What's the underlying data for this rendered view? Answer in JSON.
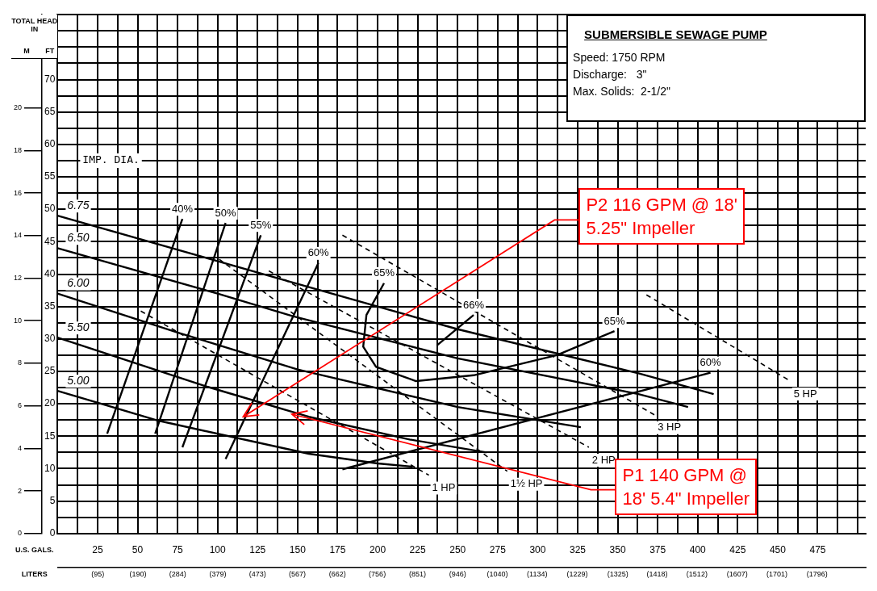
{
  "chart_data": {
    "type": "line",
    "title": "SUBMERSIBLE SEWAGE PUMP",
    "ylabel": "FT",
    "y2label": "M",
    "xlabel": "U.S. GALS.",
    "x2label": "LITERS",
    "legend_title": "IMP. DIA.",
    "legend": "left",
    "annotations": [
      "TOTAL HEAD IN",
      "Speed: 1750 RPM",
      "Discharge:   3\"",
      "Max. Solids:  2-1/2\"",
      {
        "text": "P2 116 GPM @ 18'\n5.25\" Impeller",
        "x": 116,
        "y": 18
      },
      "P1 140 GPM @\n18' 5.4\" Impeller"
    ],
    "xlim": [
      0,
      505
    ],
    "xticks": [
      {
        "value": 0,
        "label": null
      },
      {
        "value": 12.5,
        "label": null
      },
      25,
      {
        "value": 37.5,
        "label": null
      },
      50,
      {
        "value": 62.5,
        "label": null
      },
      75,
      {
        "value": 87.5,
        "label": null
      },
      100,
      {
        "value": 112.5,
        "label": null
      },
      125,
      {
        "value": 137.5,
        "label": null
      },
      150,
      {
        "value": 162.5,
        "label": null
      },
      175,
      {
        "value": 187.5,
        "label": null
      },
      200,
      {
        "value": 212.5,
        "label": null
      },
      225,
      {
        "value": 237.5,
        "label": null
      },
      250,
      {
        "value": 262.5,
        "label": null
      },
      275,
      {
        "value": 287.5,
        "label": null
      },
      300,
      {
        "value": 312.5,
        "label": null
      },
      325,
      {
        "value": 337.5,
        "label": null
      },
      350,
      {
        "value": 362.5,
        "label": null
      },
      375,
      {
        "value": 387.5,
        "label": null
      },
      400,
      {
        "value": 412.5,
        "label": null
      },
      425,
      {
        "value": 437.5,
        "label": null
      },
      450,
      {
        "value": 462.5,
        "label": null
      },
      475,
      {
        "value": 487.5,
        "label": null
      },
      {
        "value": 500,
        "label": null
      }
    ],
    "x2lim": [
      0,
      1911
    ],
    "x2ticks": [
      {
        "value": 95,
        "label": "(95)"
      },
      {
        "value": 190,
        "label": "(190)"
      },
      {
        "value": 284,
        "label": "(284)"
      },
      {
        "value": 379,
        "label": "(379)"
      },
      {
        "value": 473,
        "label": "(473)"
      },
      {
        "value": 567,
        "label": "(567)"
      },
      {
        "value": 662,
        "label": "(662)"
      },
      {
        "value": 756,
        "label": "(756)"
      },
      {
        "value": 851,
        "label": "(851)"
      },
      {
        "value": 946,
        "label": "(946)"
      },
      {
        "value": 1040,
        "label": "(1040)"
      },
      {
        "value": 1134,
        "label": "(1134)"
      },
      {
        "value": 1229,
        "label": "(1229)"
      },
      {
        "value": 1325,
        "label": "(1325)"
      },
      {
        "value": 1418,
        "label": "(1418)"
      },
      {
        "value": 1512,
        "label": "(1512)"
      },
      {
        "value": 1607,
        "label": "(1607)"
      },
      {
        "value": 1701,
        "label": "(1701)"
      },
      {
        "value": 1796,
        "label": "(1796)"
      }
    ],
    "ylim": [
      0,
      80
    ],
    "yticks": [
      0,
      {
        "value": 2.5,
        "label": null
      },
      5,
      {
        "value": 7.5,
        "label": null
      },
      10,
      {
        "value": 12.5,
        "label": null
      },
      15,
      {
        "value": 17.5,
        "label": null
      },
      20,
      {
        "value": 22.5,
        "label": null
      },
      25,
      {
        "value": 27.5,
        "label": null
      },
      30,
      {
        "value": 32.5,
        "label": null
      },
      35,
      {
        "value": 37.5,
        "label": null
      },
      40,
      {
        "value": 42.5,
        "label": null
      },
      45,
      {
        "value": 47.5,
        "label": null
      },
      50,
      {
        "value": 52.5,
        "label": null
      },
      55,
      {
        "value": 57.5,
        "label": null
      },
      60,
      {
        "value": 62.5,
        "label": null
      },
      65,
      {
        "value": 67.5,
        "label": null
      },
      70,
      {
        "value": 72.5,
        "label": null
      },
      {
        "value": 75,
        "label": null
      },
      {
        "value": 77.5,
        "label": null
      },
      {
        "value": 80,
        "label": null
      }
    ],
    "y2lim": [
      0,
      24.38
    ],
    "y2ticks": [
      0,
      2,
      4,
      6,
      8,
      10,
      12,
      14,
      16,
      18,
      20
    ],
    "grid": true,
    "marker": "none",
    "series": [
      {
        "name": "6.75",
        "color": "#000000",
        "x": [
          410,
          363,
          250,
          150,
          0
        ],
        "values": [
          21.5,
          24.7,
          31.5,
          38.5,
          49
        ]
      },
      {
        "name": "6.50",
        "color": "#000000",
        "x": [
          394,
          363,
          250,
          147,
          100,
          0
        ],
        "values": [
          19.5,
          21.5,
          27,
          33.5,
          37,
          44
        ]
      },
      {
        "name": "6.00",
        "color": "#000000",
        "x": [
          327,
          250,
          150,
          75,
          0
        ],
        "values": [
          16.4,
          19.5,
          25.3,
          31,
          37
        ]
      },
      {
        "name": "5.50",
        "color": "#000000",
        "x": [
          268,
          220,
          157,
          94,
          0
        ],
        "values": [
          12.5,
          14.5,
          18,
          22.6,
          30.2
        ]
      },
      {
        "name": "5.00",
        "color": "#000000",
        "x": [
          222,
          200,
          157,
          63,
          0
        ],
        "values": [
          10.3,
          10.8,
          12.3,
          17.4,
          22
        ]
      },
      {
        "name": "40%",
        "color": "#000000",
        "x": [
          31,
          78
        ],
        "values": [
          15.4,
          48.5
        ]
      },
      {
        "name": "50%",
        "color": "#000000",
        "x": [
          61,
          105
        ],
        "values": [
          15.4,
          47.9
        ]
      },
      {
        "name": "55%",
        "color": "#000000",
        "x": [
          78,
          127
        ],
        "values": [
          13.3,
          46
        ]
      },
      {
        "name": "60%",
        "color": "#000000",
        "x": [
          105,
          163
        ],
        "values": [
          11.5,
          41.7
        ]
      },
      {
        "name": "66%",
        "color": "#000000",
        "x": [
          237,
          260
        ],
        "values": [
          29,
          33.7
        ]
      },
      {
        "name": "65%",
        "color": "#000000",
        "x": [
          204,
          193,
          191,
          199,
          224,
          260,
          312,
          348
        ],
        "values": [
          38.6,
          33.7,
          28.8,
          25.7,
          23.5,
          24.4,
          27.5,
          31.2
        ]
      },
      {
        "name": "60%",
        "color": "#000000",
        "x": [
          178,
          408
        ],
        "values": [
          9.9,
          24.8
        ]
      },
      {
        "name": "1 HP",
        "color": "#000000",
        "line_style": "dashed",
        "x": [
          52,
          232
        ],
        "values": [
          34.3,
          9
        ]
      },
      {
        "name": "1½ HP",
        "color": "#000000",
        "line_style": "dashed",
        "x": [
          101,
          281
        ],
        "values": [
          42.3,
          9.6
        ]
      },
      {
        "name": "2 HP",
        "color": "#000000",
        "line_style": "dashed",
        "x": [
          132,
          332
        ],
        "values": [
          40.5,
          13.3
        ]
      },
      {
        "name": "3 HP",
        "color": "#000000",
        "line_style": "dashed",
        "x": [
          178,
          373
        ],
        "values": [
          46,
          18.3
        ]
      },
      {
        "name": "5 HP",
        "color": "#000000",
        "line_style": "dashed",
        "x": [
          368,
          458
        ],
        "values": [
          36.8,
          23.5
        ]
      }
    ]
  }
}
